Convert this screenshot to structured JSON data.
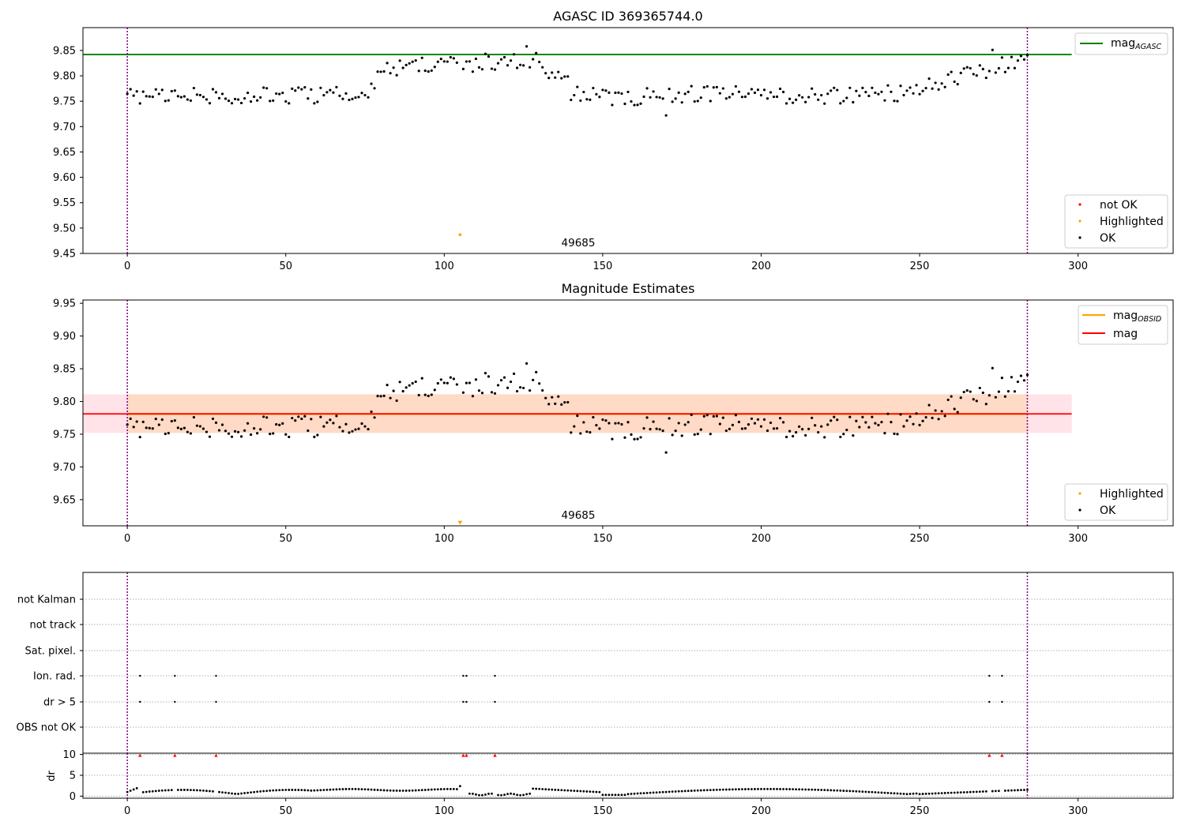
{
  "chart_data": [
    {
      "type": "scatter",
      "title": "AGASC ID 369365744.0",
      "xlim": [
        -14,
        330
      ],
      "ylim": [
        9.45,
        9.895
      ],
      "xticks": [
        "0",
        "50",
        "100",
        "150",
        "200",
        "250",
        "300"
      ],
      "yticks": [
        "9.45",
        "9.50",
        "9.55",
        "9.60",
        "9.65",
        "9.70",
        "9.75",
        "9.80",
        "9.85"
      ],
      "lines": [
        {
          "name": "mag",
          "sub": "AGASC",
          "color": "#008000",
          "y": 9.842,
          "x_range": [
            -14,
            298
          ]
        }
      ],
      "vlines": [
        0,
        284
      ],
      "vline_color": "#800080",
      "series": [
        {
          "name": "not OK",
          "color": "#ff0000",
          "marker": "dot",
          "x": [],
          "y": []
        },
        {
          "name": "Highlighted",
          "color": "#ffa500",
          "marker": "dot",
          "x": [
            105
          ],
          "y": [
            9.487
          ]
        },
        {
          "name": "OK",
          "color": "#000000",
          "marker": "dot"
        }
      ],
      "annotations": [
        {
          "text": "49685",
          "x": 142,
          "y": 9.47
        }
      ],
      "legend_lines": "top-right",
      "legend_points": "bottom-right"
    },
    {
      "type": "scatter",
      "title": "Magnitude Estimates",
      "xlim": [
        -14,
        330
      ],
      "ylim": [
        9.61,
        9.955
      ],
      "xticks": [
        "0",
        "50",
        "100",
        "150",
        "200",
        "250",
        "300"
      ],
      "yticks": [
        "9.65",
        "9.70",
        "9.75",
        "9.80",
        "9.85",
        "9.90",
        "9.95"
      ],
      "lines": [
        {
          "name": "mag",
          "sub": "OBSID",
          "color": "#ffa500",
          "y": 9.781,
          "x_range": [
            0,
            284
          ]
        },
        {
          "name": "mag",
          "sub": "",
          "color": "#ff0000",
          "y": 9.781,
          "x_range": [
            -14,
            298
          ]
        }
      ],
      "bands": [
        {
          "color": "#ffc0cb",
          "y_range": [
            9.752,
            9.811
          ],
          "x_range": [
            -14,
            298
          ]
        },
        {
          "color": "#ffd8bf",
          "y_range": [
            9.752,
            9.811
          ],
          "x_range": [
            0,
            284
          ]
        }
      ],
      "vlines": [
        0,
        284
      ],
      "vline_color": "#800080",
      "series": [
        {
          "name": "Highlighted",
          "color": "#ffa500",
          "marker": "triangle-down",
          "x": [
            105
          ],
          "y": [
            9.614
          ]
        },
        {
          "name": "OK",
          "color": "#000000",
          "marker": "dot"
        }
      ],
      "annotations": [
        {
          "text": "49685",
          "x": 142,
          "y": 9.622
        }
      ],
      "legend_lines": "top-right",
      "legend_points": "bottom-right"
    },
    {
      "type": "scatter",
      "title": "",
      "xlim": [
        -14,
        330
      ],
      "categories": [
        "OBS not OK",
        "dr > 5",
        "Ion. rad.",
        "Sat. pixel.",
        "not track",
        "not Kalman"
      ],
      "flags": {
        "dr > 5": [
          4,
          15,
          28,
          106,
          107,
          116,
          272,
          276
        ],
        "Ion. rad.": [
          4,
          15,
          28,
          106,
          107,
          116,
          272,
          276
        ]
      },
      "vlines": [
        0,
        284
      ],
      "vline_color": "#800080",
      "grid": true
    },
    {
      "type": "scatter",
      "title": "",
      "xlim": [
        -14,
        330
      ],
      "ylim": [
        -0.5,
        10.3
      ],
      "ylabel": "dr",
      "xticks": [
        "0",
        "50",
        "100",
        "150",
        "200",
        "250",
        "300"
      ],
      "yticks": [
        "0",
        "5",
        "10"
      ],
      "clipped_points_x": [
        4,
        15,
        28,
        106,
        107,
        116,
        272,
        276
      ],
      "clipped_color": "#ff0000",
      "vlines": [
        0,
        284
      ],
      "vline_color": "#800080",
      "grid": true
    }
  ]
}
